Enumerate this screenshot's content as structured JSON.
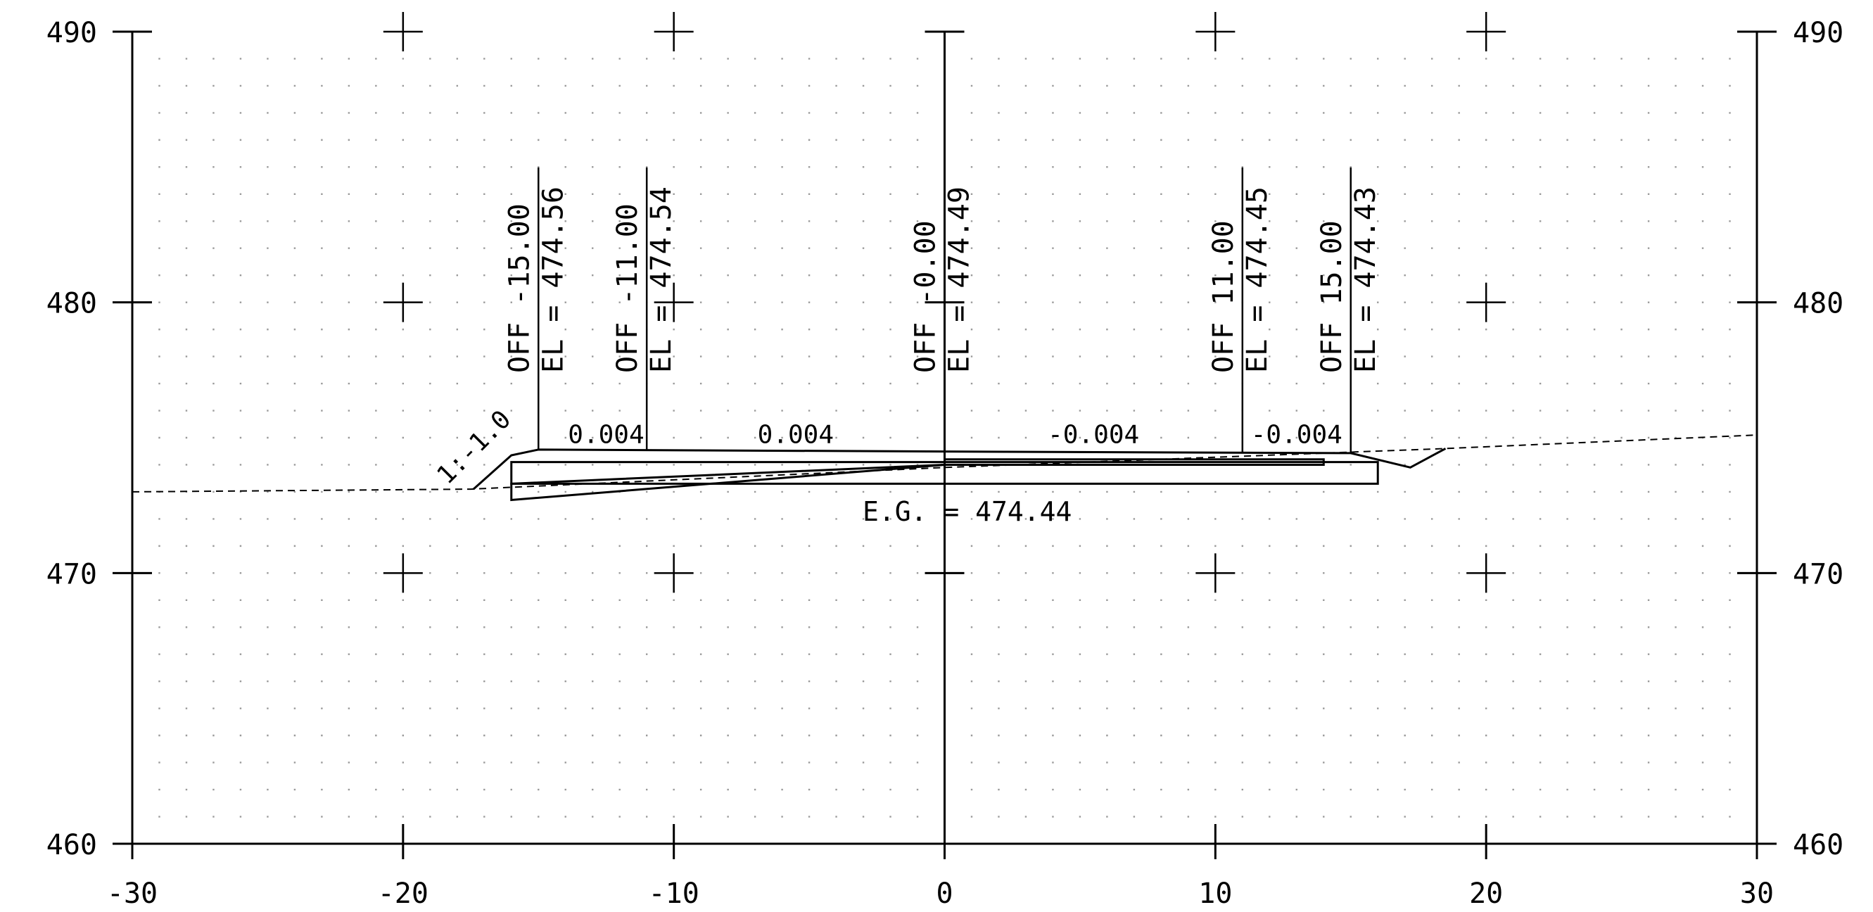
{
  "axes": {
    "x_ticks": [
      -30,
      -20,
      -10,
      0,
      10,
      20,
      30
    ],
    "y_ticks": [
      460,
      470,
      480,
      490
    ],
    "xlim": [
      -30,
      30
    ],
    "ylim": [
      460,
      490
    ],
    "grid": "dot grid, 1-unit spacing",
    "cross_markers": [
      {
        "x": -20,
        "y": 490
      },
      {
        "x": -10,
        "y": 490
      },
      {
        "x": 10,
        "y": 490
      },
      {
        "x": 20,
        "y": 490
      },
      {
        "x": -20,
        "y": 480
      },
      {
        "x": -10,
        "y": 480
      },
      {
        "x": 20,
        "y": 480
      },
      {
        "x": -20,
        "y": 470
      },
      {
        "x": -10,
        "y": 470
      },
      {
        "x": 10,
        "y": 470
      },
      {
        "x": 20,
        "y": 470
      }
    ]
  },
  "callouts": [
    {
      "off": "OFF -15.00",
      "el": "EL = 474.56",
      "x": -15,
      "y": 474.56
    },
    {
      "off": "OFF -11.00",
      "el": "EL = 474.54",
      "x": -11,
      "y": 474.54
    },
    {
      "off": "OFF -0.00",
      "el": "EL = 474.49",
      "x": 0,
      "y": 474.49
    },
    {
      "off": "OFF 11.00",
      "el": "EL = 474.45",
      "x": 11,
      "y": 474.45
    },
    {
      "off": "OFF 15.00",
      "el": "EL = 474.43",
      "x": 15,
      "y": 474.43
    }
  ],
  "slope_labels": [
    {
      "text": "0.004",
      "x": -12.5,
      "y": 474.6
    },
    {
      "text": "0.004",
      "x": -5.5,
      "y": 474.6
    },
    {
      "text": "-0.004",
      "x": 5.5,
      "y": 474.6
    },
    {
      "text": "-0.004",
      "x": 13,
      "y": 474.6
    }
  ],
  "side_slope_label": "1:-1.0",
  "eg_label": "E.G.  =  474.44",
  "existing_ground": [
    [
      -30,
      473.0
    ],
    [
      -17.5,
      473.1
    ],
    [
      0,
      473.9
    ],
    [
      18.5,
      474.6
    ],
    [
      30,
      475.1
    ]
  ],
  "finished_grade": [
    [
      -17.4,
      473.1
    ],
    [
      -16,
      474.35
    ],
    [
      -15,
      474.56
    ],
    [
      0,
      474.49
    ],
    [
      15,
      474.43
    ],
    [
      17.2,
      473.9
    ],
    [
      18.5,
      474.6
    ]
  ],
  "pavement_box": {
    "x0": -16,
    "x1": 16,
    "y0": 473.3,
    "y1": 474.1
  },
  "wedges": [
    {
      "points": [
        [
          -16,
          472.7
        ],
        [
          -16,
          473.3
        ],
        [
          0,
          474.0
        ]
      ]
    },
    {
      "points": [
        [
          0,
          474.2
        ],
        [
          14,
          474.2
        ],
        [
          14,
          474.0
        ],
        [
          0,
          474.0
        ]
      ]
    }
  ]
}
